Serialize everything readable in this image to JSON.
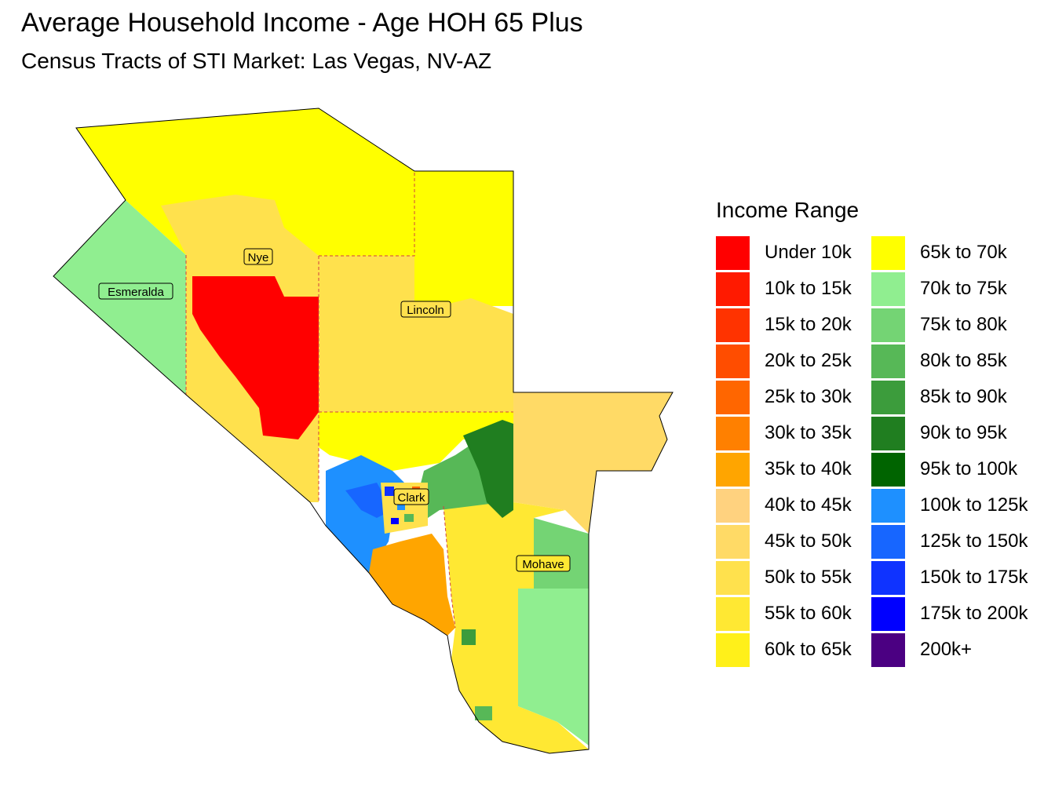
{
  "title": "Average Household Income - Age HOH 65 Plus",
  "subtitle": "Census Tracts of STI Market: Las Vegas, NV-AZ",
  "legend": {
    "title": "Income Range",
    "items": [
      {
        "label": "Under 10k",
        "color": "#FF0000"
      },
      {
        "label": "10k to 15k",
        "color": "#FF1A00"
      },
      {
        "label": "15k to 20k",
        "color": "#FF3300"
      },
      {
        "label": "20k to 25k",
        "color": "#FF4D00"
      },
      {
        "label": "25k to 30k",
        "color": "#FF6600"
      },
      {
        "label": "30k to 35k",
        "color": "#FF8000"
      },
      {
        "label": "35k to 40k",
        "color": "#FFA500"
      },
      {
        "label": "40k to 45k",
        "color": "#FFD27F"
      },
      {
        "label": "45k to 50k",
        "color": "#FFDA66"
      },
      {
        "label": "50k to 55k",
        "color": "#FFE14D"
      },
      {
        "label": "55k to 60k",
        "color": "#FFE833"
      },
      {
        "label": "60k to 65k",
        "color": "#FFF01A"
      },
      {
        "label": "65k to 70k",
        "color": "#FFFF00"
      },
      {
        "label": "70k to 75k",
        "color": "#90EE90"
      },
      {
        "label": "75k to 80k",
        "color": "#74D474"
      },
      {
        "label": "80k to 85k",
        "color": "#57B857"
      },
      {
        "label": "85k to 90k",
        "color": "#3C9C3C"
      },
      {
        "label": "90k to 95k",
        "color": "#207E20"
      },
      {
        "label": "95k to 100k",
        "color": "#006400"
      },
      {
        "label": "100k to 125k",
        "color": "#1E90FF"
      },
      {
        "label": "125k to 150k",
        "color": "#1766FF"
      },
      {
        "label": "150k to 175k",
        "color": "#0F33FF"
      },
      {
        "label": "175k to 200k",
        "color": "#0000FF"
      },
      {
        "label": "200k+",
        "color": "#4B0082"
      }
    ]
  },
  "counties": [
    {
      "name": "Nye"
    },
    {
      "name": "Esmeralda"
    },
    {
      "name": "Lincoln"
    },
    {
      "name": "Clark"
    },
    {
      "name": "Mohave"
    }
  ]
}
